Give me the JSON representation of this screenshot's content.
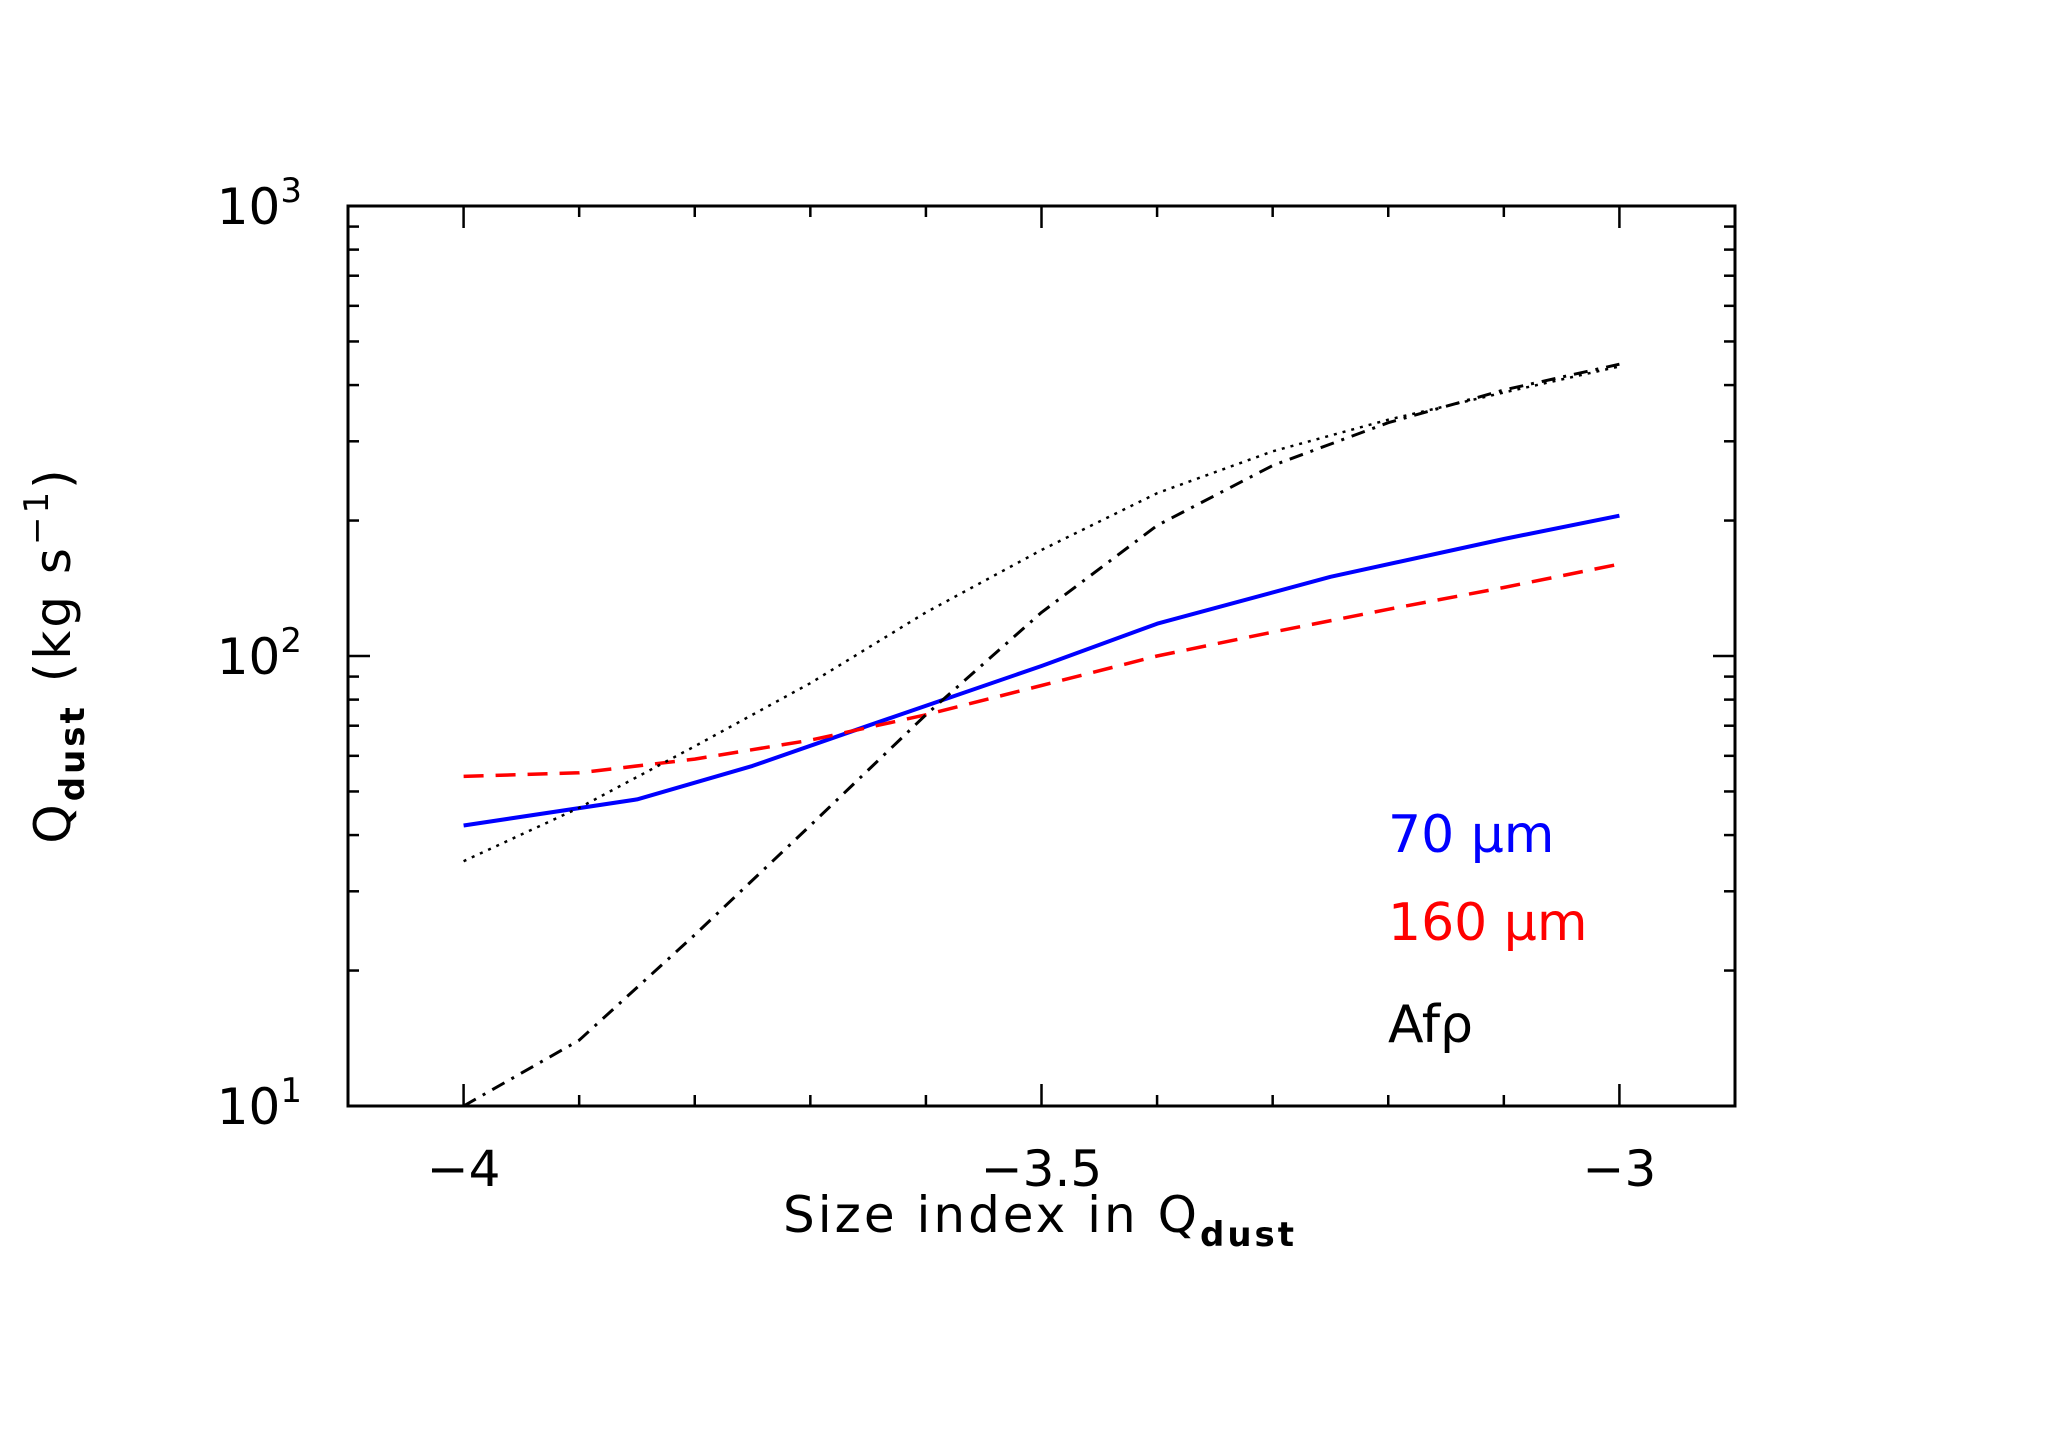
{
  "chart_data": {
    "type": "line",
    "xlabel": "Size index in Q",
    "xlabel_sub": "dust",
    "ylabel_q": "Q",
    "ylabel_sub": "dust",
    "ylabel_unit": "(kg s",
    "ylabel_unit_exp": "−1",
    "ylabel_unit_close": ")",
    "xlim": [
      -4.1,
      -2.9
    ],
    "ylim": [
      10,
      1000
    ],
    "yscale": "log",
    "x_ticks": [
      -4,
      -3.5,
      -3
    ],
    "x_tick_labels": [
      "−4",
      "−3.5",
      "−3"
    ],
    "y_ticks": [
      10,
      100,
      1000
    ],
    "y_tick_bases": [
      "10",
      "10",
      "10"
    ],
    "y_tick_exps": [
      "1",
      "2",
      "3"
    ],
    "grid": false,
    "legend_position": "bottom-right",
    "series": [
      {
        "name": "70 μm",
        "color": "#0000ff",
        "style": "solid",
        "x": [
          -4.0,
          -3.85,
          -3.75,
          -3.65,
          -3.5,
          -3.4,
          -3.25,
          -3.1,
          -3.0
        ],
        "y": [
          42,
          48,
          57,
          70,
          95,
          118,
          150,
          182,
          205
        ]
      },
      {
        "name": "160 μm",
        "color": "#ff0000",
        "style": "dashed",
        "x": [
          -4.0,
          -3.9,
          -3.8,
          -3.7,
          -3.6,
          -3.5,
          -3.4,
          -3.3,
          -3.2,
          -3.1,
          -3.0
        ],
        "y": [
          54,
          55,
          59,
          65,
          74,
          86,
          100,
          113,
          127,
          142,
          160
        ]
      },
      {
        "name": "Afρ",
        "color": "#000000",
        "style": "dotted",
        "x": [
          -4.0,
          -3.9,
          -3.8,
          -3.7,
          -3.6,
          -3.5,
          -3.4,
          -3.3,
          -3.2,
          -3.1,
          -3.0
        ],
        "y": [
          35,
          46,
          63,
          87,
          125,
          172,
          230,
          285,
          335,
          385,
          440
        ]
      },
      {
        "name": "Afρ",
        "color": "#000000",
        "style": "dashdot",
        "x": [
          -4.0,
          -3.9,
          -3.8,
          -3.7,
          -3.6,
          -3.5,
          -3.4,
          -3.3,
          -3.2,
          -3.1,
          -3.0
        ],
        "y": [
          10,
          14,
          24,
          42,
          74,
          125,
          195,
          265,
          330,
          390,
          445
        ]
      }
    ],
    "legend": [
      {
        "label": "70 μm",
        "color": "#0000ff"
      },
      {
        "label": "160 μm",
        "color": "#ff0000"
      },
      {
        "label": "Afρ",
        "color": "#000000"
      }
    ]
  }
}
